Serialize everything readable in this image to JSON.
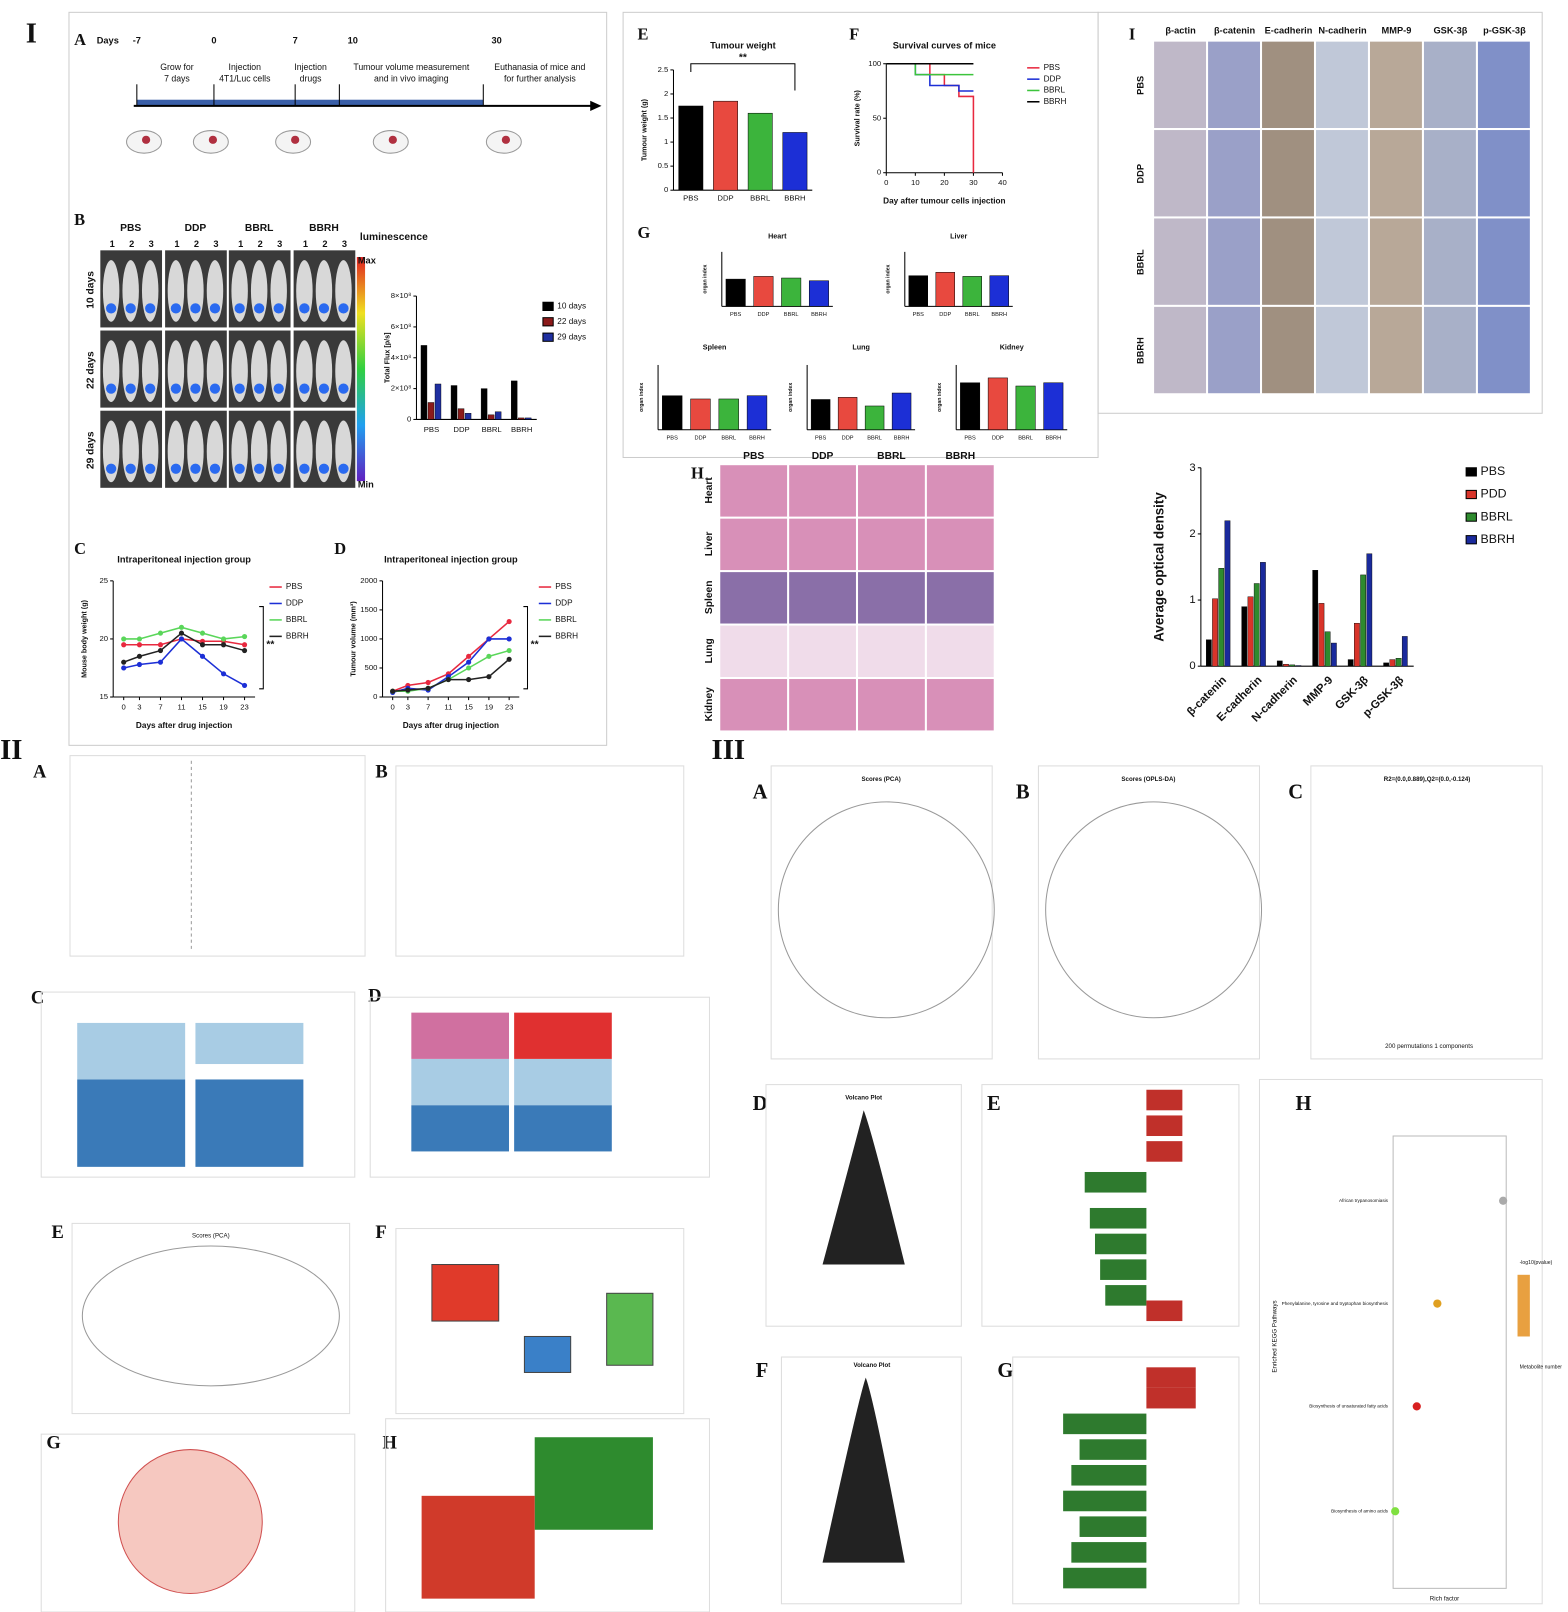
{
  "figure": {
    "sections": [
      "I",
      "II",
      "III"
    ],
    "I": {
      "panels": [
        "A",
        "B",
        "C",
        "D",
        "E",
        "F",
        "G",
        "H",
        "I"
      ],
      "timeline": {
        "label": "Days",
        "days": [
          "-7",
          "0",
          "7",
          "10",
          "30"
        ],
        "steps": [
          [
            "Grow for",
            "7 days"
          ],
          [
            "Injection",
            "4T1/Luc cells"
          ],
          [
            "Injection",
            "drugs"
          ],
          [
            "Tumour volume measurement",
            "and in vivo imaging"
          ],
          [
            "Euthanasia of mice and",
            "for further analysis"
          ]
        ]
      },
      "imaging": {
        "groups": [
          "PBS",
          "DDP",
          "BBRL",
          "BBRH"
        ],
        "mice": [
          "1",
          "2",
          "3"
        ],
        "scale_title": "luminescence",
        "scale_max": "Max",
        "scale_min": "Min",
        "timepoints": [
          "10 days",
          "22 days",
          "29 days"
        ]
      },
      "histology": {
        "groups": [
          "PBS",
          "DDP",
          "BBRL",
          "BBRH"
        ],
        "organs": [
          "Heart",
          "Liver",
          "Spleen",
          "Lung",
          "Kidney"
        ]
      },
      "ihc": {
        "markers": [
          "β-actin",
          "β-catenin",
          "E-cadherin",
          "N-cadherin",
          "MMP-9",
          "GSK-3β",
          "p-GSK-3β"
        ],
        "groups": [
          "PBS",
          "DDP",
          "BBRL",
          "BBRH"
        ]
      }
    },
    "II": {
      "panels": [
        "A",
        "B",
        "C",
        "D",
        "E",
        "F",
        "G",
        "H"
      ],
      "e_title": "Scores (PCA)"
    },
    "III": {
      "panels": [
        "A",
        "B",
        "C",
        "D",
        "E",
        "F",
        "G",
        "H"
      ],
      "titles": [
        "Scores (PCA)",
        "Scores (OPLS-DA)",
        "R2=(0.0,0.889),Q2=(0.0,-0.124)",
        "Volcano Plot",
        "Volcano Plot"
      ],
      "c_xlabel": "200 permutations 1 components",
      "h_xlabel": "Rich factor",
      "h_ylabel": "Enriched KEGG Pathways",
      "h_pathways": [
        "African trypanosomiasis",
        "Phenylalanine, tyrosine and tryptophan biosynthesis",
        "Biosynthesis of unsaturated fatty acids",
        "Biosynthesis of amino acids"
      ],
      "h_legend": [
        "-log10(pvalue)",
        "Metabolite number"
      ]
    }
  },
  "chart_data": [
    {
      "type": "bar",
      "title": "Tumour weight",
      "ylabel": "Tumour weight (g)",
      "categories": [
        "PBS",
        "DDP",
        "BBRL",
        "BBRH"
      ],
      "values": [
        1.75,
        1.85,
        1.6,
        1.2
      ],
      "colors": [
        "#000000",
        "#e8493f",
        "#3cb43c",
        "#1c2fd6"
      ],
      "ylim": [
        0,
        2.5
      ],
      "yticks": [
        0,
        0.5,
        1,
        1.5,
        2,
        2.5
      ],
      "annotation": "**"
    },
    {
      "type": "line",
      "step": true,
      "title": "Survival curves of mice",
      "xlabel": "Day after tumour cells injection",
      "ylabel": "Survival rate (%)",
      "x": [
        0,
        10,
        15,
        20,
        25,
        30
      ],
      "xlim": [
        0,
        40
      ],
      "xticks": [
        0,
        10,
        20,
        30,
        40
      ],
      "ylim": [
        0,
        100
      ],
      "yticks": [
        0,
        50,
        100
      ],
      "series": [
        {
          "name": "PBS",
          "color": "#e8293f",
          "values": [
            100,
            100,
            90,
            80,
            70,
            0
          ]
        },
        {
          "name": "DDP",
          "color": "#1c2fd6",
          "values": [
            100,
            90,
            80,
            80,
            75,
            75
          ]
        },
        {
          "name": "BBRL",
          "color": "#3cc43c",
          "values": [
            100,
            90,
            90,
            90,
            90,
            90
          ]
        },
        {
          "name": "BBRH",
          "color": "#000000",
          "values": [
            100,
            100,
            100,
            100,
            100,
            100
          ]
        }
      ]
    },
    {
      "type": "line",
      "title": "Intraperitoneal injection group",
      "xlabel": "Days after drug injection",
      "ylabel": "Mouse body weight (g)",
      "x": [
        0,
        3,
        7,
        11,
        15,
        19,
        23
      ],
      "xlim": [
        -2,
        25
      ],
      "xticks": [
        0,
        3,
        7,
        11,
        15,
        19,
        23
      ],
      "ylim": [
        15,
        25
      ],
      "yticks": [
        15,
        20,
        25
      ],
      "annotation": "**",
      "series": [
        {
          "name": "PBS",
          "color": "#e8293f",
          "values": [
            19.5,
            19.5,
            19.5,
            20,
            19.8,
            19.8,
            19.5
          ]
        },
        {
          "name": "DDP",
          "color": "#1c2fd6",
          "values": [
            17.5,
            17.8,
            18,
            20,
            18.5,
            17,
            16
          ]
        },
        {
          "name": "BBRL",
          "color": "#5ad65a",
          "values": [
            20,
            20,
            20.5,
            21,
            20.5,
            20,
            20.2
          ]
        },
        {
          "name": "BBRH",
          "color": "#222222",
          "values": [
            18,
            18.5,
            19,
            20.5,
            19.5,
            19.5,
            19
          ]
        }
      ]
    },
    {
      "type": "line",
      "title": "Intraperitoneal injection group",
      "xlabel": "Days after drug injection",
      "ylabel": "Tumour volume (mm³)",
      "x": [
        0,
        3,
        7,
        11,
        15,
        19,
        23
      ],
      "xlim": [
        -2,
        25
      ],
      "xticks": [
        0,
        3,
        7,
        11,
        15,
        19,
        23
      ],
      "ylim": [
        0,
        2000
      ],
      "yticks": [
        0,
        500,
        1000,
        1500,
        2000
      ],
      "annotation": "**",
      "series": [
        {
          "name": "PBS",
          "color": "#e8293f",
          "values": [
            100,
            200,
            250,
            400,
            700,
            1000,
            1300
          ]
        },
        {
          "name": "DDP",
          "color": "#1c2fd6",
          "values": [
            80,
            150,
            120,
            350,
            600,
            1000,
            1000
          ]
        },
        {
          "name": "BBRL",
          "color": "#5ad65a",
          "values": [
            100,
            100,
            150,
            300,
            500,
            700,
            800
          ]
        },
        {
          "name": "BBRH",
          "color": "#222222",
          "values": [
            100,
            120,
            150,
            300,
            300,
            350,
            650
          ]
        }
      ]
    },
    {
      "type": "grouped",
      "ylabel": "Average optical density",
      "categories": [
        "β-catenin",
        "E-cadherin",
        "N-cadherin",
        "MMP-9",
        "GSK-3β",
        "p-GSK-3β"
      ],
      "ylim": [
        0,
        3
      ],
      "yticks": [
        0,
        1,
        2,
        3
      ],
      "series": [
        {
          "name": "PBS",
          "color": "#000000",
          "values": [
            0.4,
            0.9,
            0.08,
            1.45,
            0.1,
            0.05
          ]
        },
        {
          "name": "PDD",
          "color": "#d8342a",
          "values": [
            1.02,
            1.05,
            0.03,
            0.95,
            0.65,
            0.1
          ]
        },
        {
          "name": "BBRL",
          "color": "#2e8b2e",
          "values": [
            1.48,
            1.25,
            0.02,
            0.52,
            1.38,
            0.12
          ]
        },
        {
          "name": "BBRH",
          "color": "#1a2a9c",
          "values": [
            2.2,
            1.57,
            0.01,
            0.35,
            1.7,
            0.45
          ]
        }
      ]
    },
    {
      "type": "grouped",
      "ylabel": "Total Flux [p/s]",
      "categories": [
        "PBS",
        "DDP",
        "BBRL",
        "BBRH"
      ],
      "ylim": [
        0,
        800000000
      ],
      "yticks": [
        0,
        {
          "value": 200000000,
          "label": "2×10⁸"
        },
        {
          "value": 400000000,
          "label": "4×10⁸"
        },
        {
          "value": 600000000,
          "label": "6×10⁸"
        },
        {
          "value": 800000000,
          "label": "8×10⁸"
        }
      ],
      "series": [
        {
          "name": "10 days",
          "color": "#000000",
          "values": [
            480000000,
            220000000,
            200000000,
            250000000
          ]
        },
        {
          "name": "22 days",
          "color": "#8b1a1a",
          "values": [
            110000000,
            70000000,
            30000000,
            10000000
          ]
        },
        {
          "name": "29 days",
          "color": "#1f2fa0",
          "values": [
            230000000,
            40000000,
            50000000,
            10000000
          ]
        }
      ]
    },
    {
      "type": "bar",
      "title": "Heart",
      "ylabel": "organ index",
      "categories": [
        "PBS",
        "DDP",
        "BBRL",
        "BBRH"
      ],
      "values": [
        0.5,
        0.55,
        0.52,
        0.47
      ],
      "colors": [
        "#000000",
        "#e8493f",
        "#3cb43c",
        "#1c2fd6"
      ],
      "ylim": [
        0,
        1
      ]
    },
    {
      "type": "bar",
      "title": "Liver",
      "ylabel": "organ index",
      "categories": [
        "PBS",
        "DDP",
        "BBRL",
        "BBRH"
      ],
      "values": [
        4.5,
        5.0,
        4.4,
        4.5
      ],
      "colors": [
        "#000000",
        "#e8493f",
        "#3cb43c",
        "#1c2fd6"
      ],
      "ylim": [
        0,
        8
      ]
    },
    {
      "type": "bar",
      "title": "Spleen",
      "ylabel": "organ index",
      "categories": [
        "PBS",
        "DDP",
        "BBRL",
        "BBRH"
      ],
      "values": [
        0.42,
        0.38,
        0.38,
        0.42
      ],
      "colors": [
        "#000000",
        "#e8493f",
        "#3cb43c",
        "#1c2fd6"
      ],
      "ylim": [
        0,
        0.8
      ]
    },
    {
      "type": "bar",
      "title": "Lung",
      "ylabel": "organ index",
      "categories": [
        "PBS",
        "DDP",
        "BBRL",
        "BBRH"
      ],
      "values": [
        0.7,
        0.75,
        0.55,
        0.85
      ],
      "colors": [
        "#000000",
        "#e8493f",
        "#3cb43c",
        "#1c2fd6"
      ],
      "ylim": [
        0,
        1.5
      ]
    },
    {
      "type": "bar",
      "title": "Kidney",
      "ylabel": "organ index",
      "categories": [
        "PBS",
        "DDP",
        "BBRL",
        "BBRH"
      ],
      "values": [
        1.45,
        1.6,
        1.35,
        1.45
      ],
      "colors": [
        "#000000",
        "#e8493f",
        "#3cb43c",
        "#1c2fd6"
      ],
      "ylim": [
        0,
        2
      ]
    }
  ]
}
